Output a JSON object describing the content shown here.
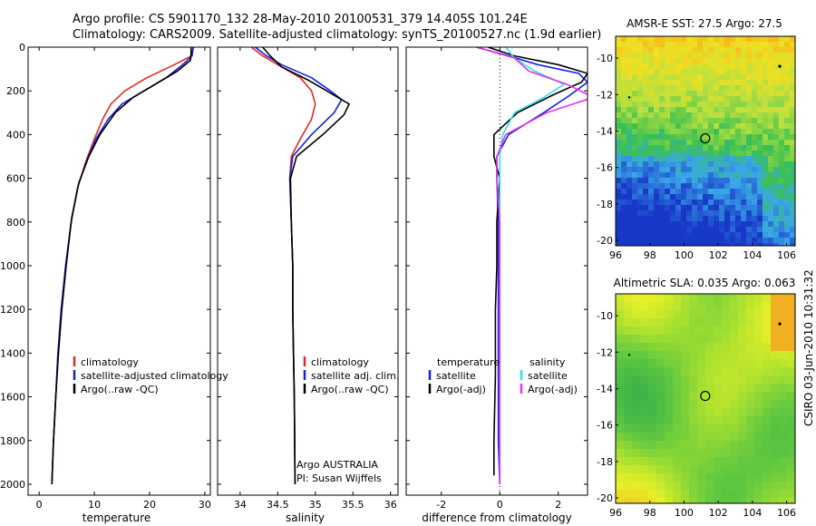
{
  "figure": {
    "title_line1": "Argo profile: CS 5901170_132 28-May-2010 20100531_379 14.405S 101.24E",
    "title_line2": "Climatology: CARS2009. Satellite-adjusted climatology: synTS_20100527.nc (1.9d earlier)",
    "side_text": "CSIRO 03-Jun-2010 10:31:32"
  },
  "colors": {
    "red": "#e8281e",
    "blue": "#1020e8",
    "black": "#000000",
    "cyan": "#30e0e8",
    "magenta": "#e830e8"
  },
  "chart_data": [
    {
      "type": "line",
      "xlabel": "temperature",
      "xlim": [
        -2,
        31
      ],
      "ylim": [
        0,
        2050
      ],
      "xticks": [
        0,
        10,
        20,
        30
      ],
      "yticks": [
        0,
        200,
        400,
        600,
        800,
        1000,
        1200,
        1400,
        1600,
        1800,
        2000
      ],
      "legend_placement": "lower-right",
      "series": [
        {
          "name": "climatology",
          "color": "red",
          "x": [
            27.9,
            27.6,
            24.5,
            19.5,
            15.5,
            13.0,
            11.5,
            10.0,
            8.5,
            7.0,
            5.8,
            4.8,
            4.0,
            3.4,
            3.0,
            2.6,
            2.3
          ],
          "y": [
            0,
            40,
            80,
            140,
            200,
            260,
            330,
            420,
            520,
            640,
            800,
            1000,
            1200,
            1400,
            1600,
            1800,
            2000
          ]
        },
        {
          "name": "satellite-adjusted climatology",
          "color": "blue",
          "x": [
            27.9,
            27.7,
            26.0,
            23.0,
            19.0,
            15.0,
            12.5,
            10.3,
            8.6,
            7.0,
            5.8,
            4.8,
            4.0,
            3.4,
            3.0,
            2.6,
            2.3
          ],
          "y": [
            0,
            40,
            80,
            140,
            200,
            260,
            330,
            420,
            520,
            640,
            800,
            1000,
            1200,
            1400,
            1600,
            1800,
            2000
          ]
        },
        {
          "name": "Argo(..raw -QC)",
          "color": "black",
          "x": [
            27.5,
            27.5,
            27.4,
            25.0,
            21.0,
            17.0,
            13.8,
            11.0,
            9.0,
            7.2,
            5.9,
            4.9,
            4.1,
            3.5,
            3.0,
            2.6,
            2.3
          ],
          "y": [
            0,
            30,
            60,
            110,
            170,
            230,
            300,
            400,
            500,
            620,
            780,
            1000,
            1200,
            1400,
            1600,
            1800,
            2000
          ]
        }
      ]
    },
    {
      "type": "line",
      "xlabel": "salinity",
      "xlim": [
        33.7,
        36.1
      ],
      "ylim": [
        0,
        2050
      ],
      "xticks": [
        34,
        34.5,
        35,
        35.5,
        36
      ],
      "xtick_labels": [
        "34",
        "34.5",
        "35",
        "35.5",
        "36"
      ],
      "legend_placement": "lower-right",
      "annotations": [
        "Argo AUSTRALIA",
        "PI: Susan Wijffels"
      ],
      "series": [
        {
          "name": "climatology",
          "color": "red",
          "x": [
            34.15,
            34.3,
            34.5,
            34.8,
            34.95,
            35.0,
            34.95,
            34.8,
            34.68,
            34.66,
            34.68,
            34.7,
            34.7,
            34.71,
            34.72,
            34.73
          ],
          "y": [
            0,
            40,
            80,
            140,
            200,
            260,
            330,
            420,
            500,
            600,
            800,
            1000,
            1200,
            1400,
            1600,
            2000
          ]
        },
        {
          "name": "satellite adj. clim.",
          "color": "blue",
          "x": [
            34.2,
            34.35,
            34.55,
            34.95,
            35.2,
            35.35,
            35.25,
            34.95,
            34.7,
            34.66,
            34.68,
            34.7,
            34.7,
            34.71,
            34.72,
            34.73
          ],
          "y": [
            0,
            40,
            80,
            140,
            200,
            240,
            300,
            400,
            500,
            600,
            800,
            1000,
            1200,
            1400,
            1600,
            2000
          ]
        },
        {
          "name": "Argo(..raw -QC)",
          "color": "black",
          "x": [
            34.3,
            34.4,
            34.55,
            34.9,
            35.2,
            35.45,
            35.38,
            35.1,
            34.75,
            34.67,
            34.68,
            34.7,
            34.7,
            34.71,
            34.72,
            34.73
          ],
          "y": [
            0,
            40,
            90,
            150,
            210,
            260,
            310,
            400,
            500,
            600,
            800,
            1000,
            1200,
            1400,
            1600,
            2000
          ]
        }
      ]
    },
    {
      "type": "line",
      "xlabel": "difference from climatology",
      "xlim": [
        -3.2,
        3.0
      ],
      "ylim": [
        0,
        2050
      ],
      "xticks": [
        -2,
        0,
        2
      ],
      "zero_line": "dotted",
      "legend_placement": "lower-center",
      "legend_headers": [
        "temperature",
        "salinity"
      ],
      "series": [
        {
          "name": "satellite",
          "group": "temperature",
          "color": "blue",
          "x": [
            -0.8,
            0.3,
            1.3,
            2.7,
            3.0,
            2.4,
            1.5,
            0.3,
            -0.1,
            -0.1,
            -0.05,
            -0.05,
            -0.05,
            -0.05,
            -0.05,
            0.0
          ],
          "y": [
            0,
            40,
            80,
            120,
            160,
            220,
            300,
            400,
            500,
            600,
            800,
            1000,
            1200,
            1500,
            1800,
            2000
          ]
        },
        {
          "name": "Argo(-adj)",
          "group": "temperature",
          "color": "black",
          "x": [
            -0.4,
            0.5,
            2.0,
            3.0,
            2.8,
            1.8,
            0.6,
            -0.2,
            -0.2,
            0.0,
            -0.1,
            -0.1,
            -0.15,
            -0.15,
            -0.2,
            -0.2
          ],
          "y": [
            0,
            40,
            80,
            120,
            160,
            220,
            300,
            400,
            500,
            600,
            800,
            1000,
            1200,
            1500,
            1800,
            1960
          ]
        },
        {
          "name": "satellite",
          "group": "salinity",
          "color": "cyan",
          "x": [
            0.2,
            0.5,
            1.2,
            2.2,
            1.5,
            0.5,
            0.1,
            0.0,
            0.0,
            0.0,
            0.0,
            0.0,
            0.0,
            0.0,
            0.0
          ],
          "y": [
            0,
            50,
            110,
            170,
            230,
            300,
            400,
            500,
            600,
            800,
            1000,
            1200,
            1500,
            1800,
            2000
          ]
        },
        {
          "name": "Argo(-adj)",
          "group": "salinity",
          "color": "magenta",
          "x": [
            -0.8,
            0.5,
            1.0,
            2.3,
            3.2,
            1.6,
            0.2,
            -0.1,
            -0.1,
            0.0,
            0.0,
            0.0,
            0.0,
            0.0,
            0.0
          ],
          "y": [
            0,
            50,
            110,
            170,
            230,
            300,
            400,
            500,
            600,
            800,
            1000,
            1200,
            1500,
            1800,
            2000
          ]
        }
      ]
    },
    {
      "type": "heatmap",
      "title": "AMSR-E SST: 27.5 Argo: 27.5",
      "xlim": [
        96,
        106.5
      ],
      "ylim": [
        -20.3,
        -8.8
      ],
      "xticks": [
        96,
        98,
        100,
        102,
        104,
        106
      ],
      "yticks": [
        -10,
        -12,
        -14,
        -16,
        -18,
        -20
      ],
      "argo_marker": {
        "lon": 101.24,
        "lat": -14.405
      },
      "colormap": [
        "#1838c8",
        "#3aa8e8",
        "#38c050",
        "#b8e040",
        "#f0e020",
        "#f8a020"
      ]
    },
    {
      "type": "heatmap",
      "title": "Altimetric SLA: 0.035 Argo: 0.063",
      "xlim": [
        96,
        106.5
      ],
      "ylim": [
        -20.3,
        -8.8
      ],
      "xticks": [
        96,
        98,
        100,
        102,
        104,
        106
      ],
      "yticks": [
        -10,
        -12,
        -14,
        -16,
        -18,
        -20
      ],
      "argo_marker": {
        "lon": 101.24,
        "lat": -14.405
      },
      "colormap": [
        "#38b048",
        "#60c840",
        "#a8e030",
        "#e8f028",
        "#f0b020"
      ]
    }
  ]
}
